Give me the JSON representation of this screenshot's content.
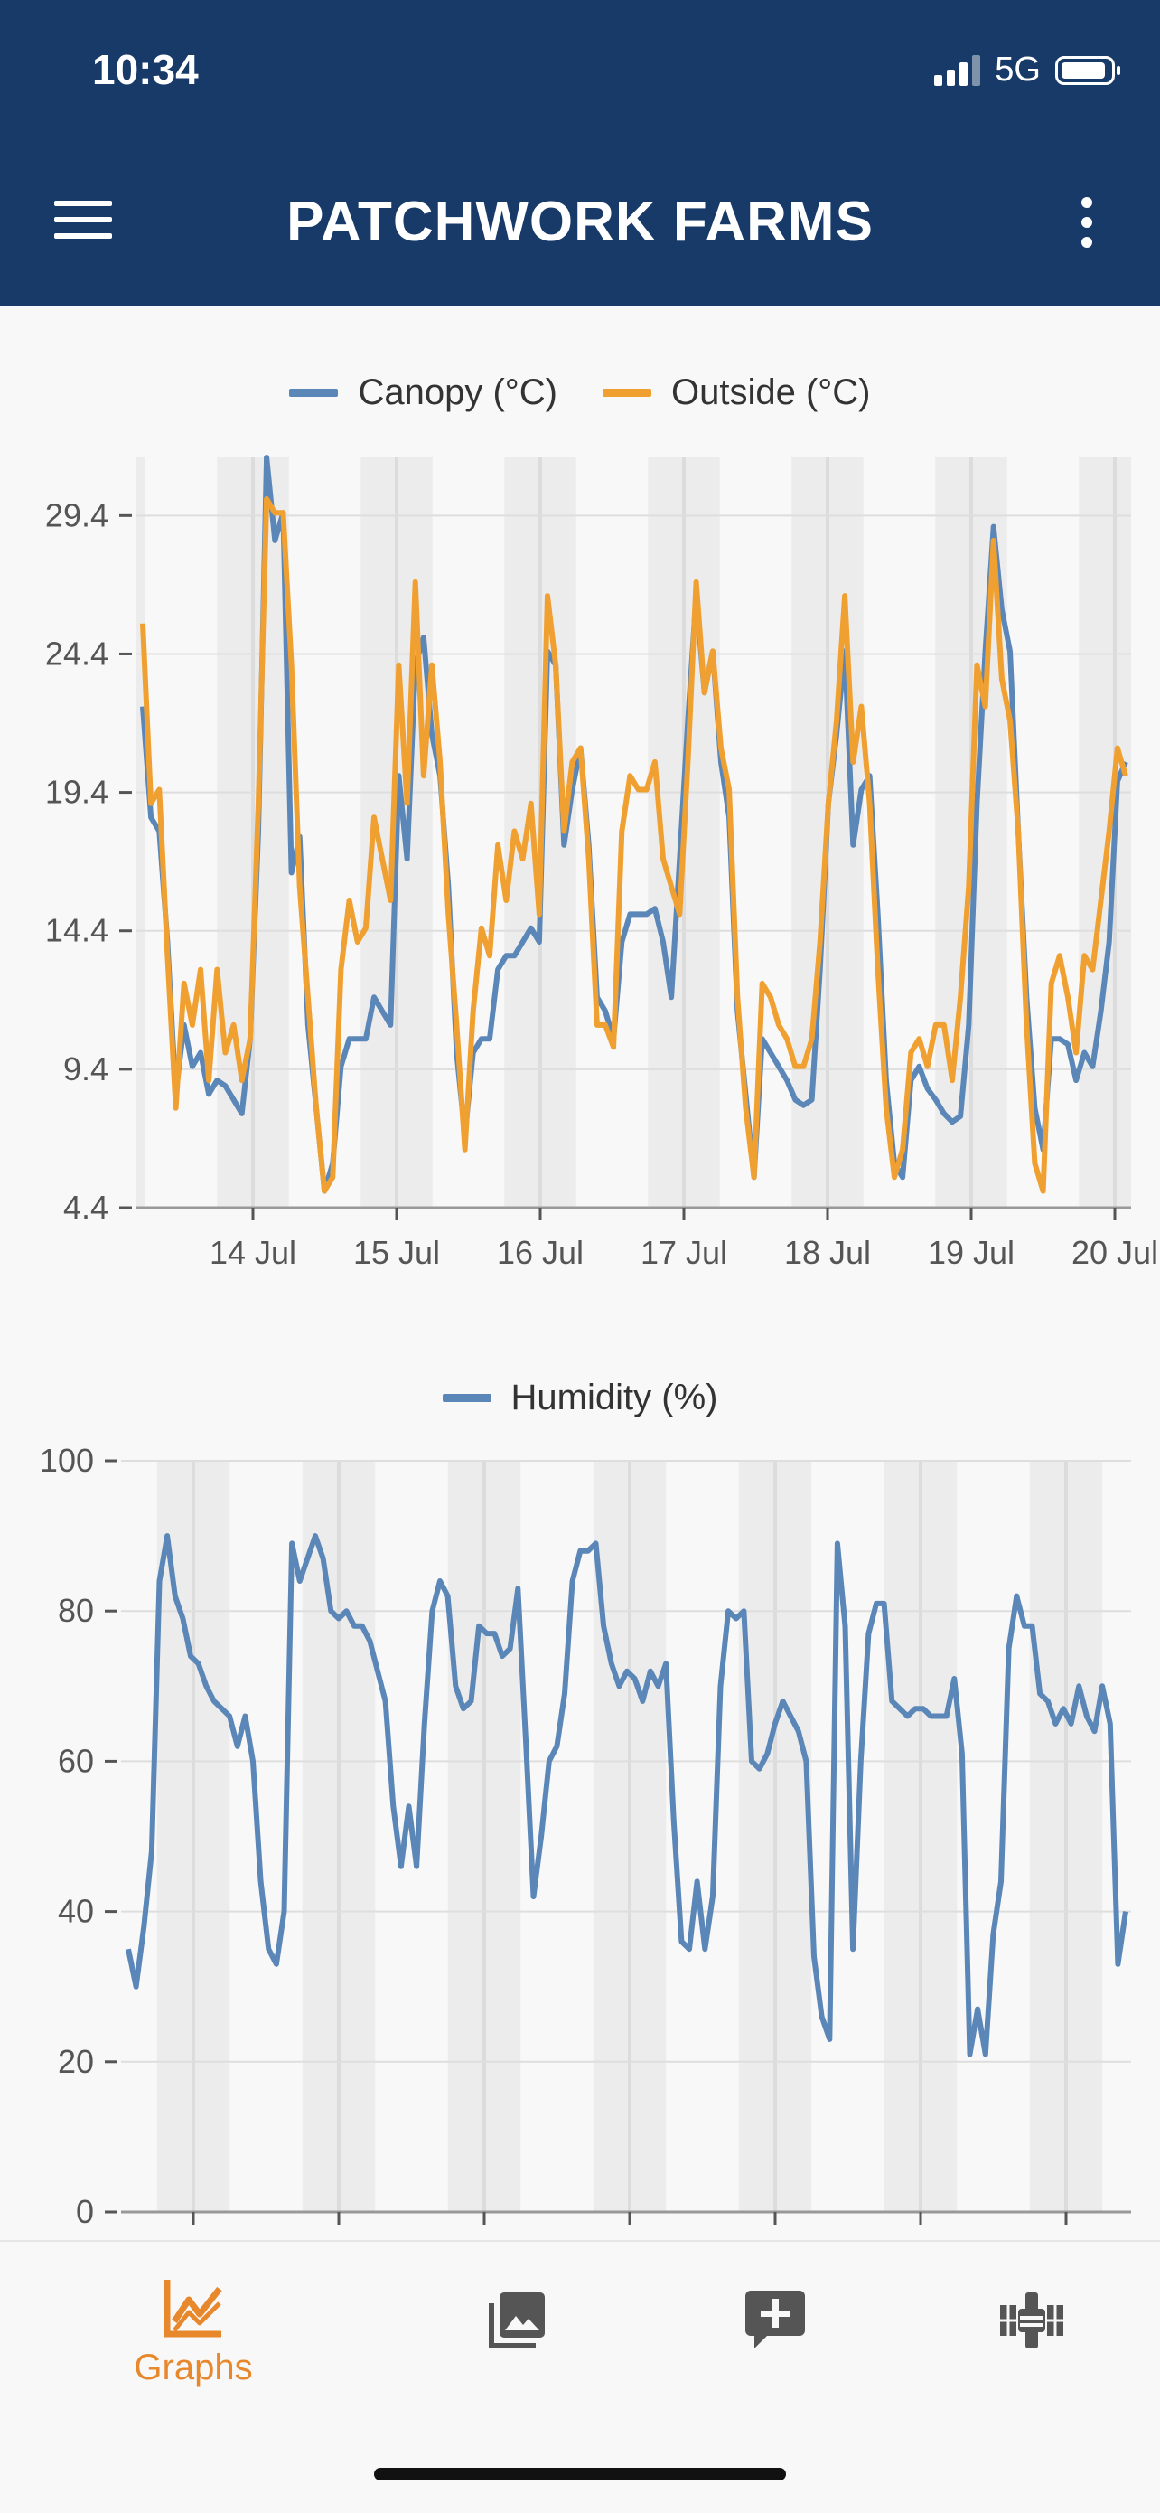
{
  "status_bar": {
    "time": "10:34",
    "network": "5G"
  },
  "app_bar": {
    "title": "PATCHWORK FARMS"
  },
  "colors": {
    "appbar": "#173a69",
    "blue_series": "#5a86b8",
    "orange_series": "#f0a030",
    "accent": "#e8882d",
    "band": "#ececec"
  },
  "chart_data": [
    {
      "type": "line",
      "title": "",
      "series": [
        {
          "name": "Canopy (°C)",
          "color": "#5a86b8",
          "values": [
            22.5,
            18.5,
            18,
            14,
            8.5,
            11,
            9.5,
            10,
            8.5,
            9,
            8.8,
            8.3,
            7.8,
            10.5,
            18,
            31.5,
            28.5,
            29.5,
            16.5,
            17.8,
            11,
            8,
            5,
            6,
            9.5,
            10.5,
            10.5,
            10.5,
            12,
            11.5,
            11,
            20,
            17,
            24,
            25,
            21.5,
            20,
            16,
            10,
            7,
            10,
            10.5,
            10.5,
            13,
            13.5,
            13.5,
            14,
            14.5,
            14,
            24.5,
            24,
            17.5,
            19.5,
            21,
            17.5,
            12,
            11.5,
            10.5,
            14,
            15,
            15,
            15,
            15.2,
            14,
            12,
            17,
            22,
            26.5,
            23,
            24.5,
            20.5,
            18.5,
            11.5,
            8.5,
            5.5,
            10.5,
            10,
            9.5,
            9,
            8.3,
            8.1,
            8.3,
            13,
            19,
            21.5,
            24.5,
            17.5,
            19.5,
            20,
            15,
            9,
            6,
            5.5,
            9,
            9.5,
            8.7,
            8.3,
            7.8,
            7.5,
            7.7,
            11,
            19,
            24.5,
            29,
            26,
            24.5,
            18,
            12,
            8,
            6.5,
            10.5,
            10.5,
            10.3,
            9,
            10,
            9.5,
            11.5,
            14,
            19.8,
            20.5
          ]
        },
        {
          "name": "Outside (°C)",
          "color": "#f0a030",
          "values": [
            25.5,
            19,
            19.5,
            13.5,
            8,
            12.5,
            11,
            13,
            9,
            13,
            10,
            11,
            9,
            10.5,
            19,
            30,
            29.5,
            29.5,
            24,
            16,
            12,
            8,
            5,
            5.5,
            13,
            15.5,
            14,
            14.5,
            18.5,
            17,
            15.5,
            24,
            19,
            27,
            20,
            24,
            20.5,
            15,
            11,
            6.5,
            11.5,
            14.5,
            13.5,
            17.5,
            15.5,
            18,
            17,
            19,
            15,
            26.5,
            24,
            18,
            20.5,
            21,
            17,
            11,
            11,
            10.2,
            18,
            20,
            19.5,
            19.5,
            20.5,
            17,
            16,
            15,
            20.5,
            27,
            23,
            24.5,
            21,
            19.5,
            12,
            8,
            5.5,
            12.5,
            12,
            11,
            10.5,
            9.5,
            9.5,
            10.5,
            14,
            19,
            22,
            26.5,
            20.5,
            22.5,
            19,
            13,
            8,
            5.5,
            6.5,
            10,
            10.5,
            9.5,
            11,
            11,
            9,
            12,
            16,
            24,
            22.5,
            28.5,
            23.5,
            22,
            18,
            11,
            6,
            5,
            12.5,
            13.5,
            12,
            10,
            13.5,
            13,
            15.5,
            18,
            21,
            20
          ]
        }
      ],
      "x_tick_labels": [
        "14 Jul",
        "15 Jul",
        "16 Jul",
        "17 Jul",
        "18 Jul",
        "19 Jul",
        "20 Jul"
      ],
      "y_tick_labels": [
        "4.4",
        "9.4",
        "14.4",
        "19.4",
        "24.4",
        "29.4"
      ],
      "ylim": [
        4.4,
        31.5
      ],
      "grid": true,
      "legend_position": "top-center"
    },
    {
      "type": "line",
      "title": "",
      "series": [
        {
          "name": "Humidity (%)",
          "color": "#5a86b8",
          "values": [
            35,
            30,
            38,
            48,
            84,
            90,
            82,
            79,
            74,
            73,
            70,
            68,
            67,
            66,
            62,
            66,
            60,
            44,
            35,
            33,
            40,
            89,
            84,
            87,
            90,
            87,
            80,
            79,
            80,
            78,
            78,
            76,
            72,
            68,
            54,
            46,
            54,
            46,
            65,
            80,
            84,
            82,
            70,
            67,
            68,
            78,
            77,
            77,
            74,
            75,
            83,
            63,
            42,
            50,
            60,
            62,
            69,
            84,
            88,
            88,
            89,
            78,
            73,
            70,
            72,
            71,
            68,
            72,
            70,
            73,
            52,
            36,
            35,
            44,
            35,
            42,
            70,
            80,
            79,
            80,
            60,
            59,
            61,
            65,
            68,
            66,
            64,
            60,
            34,
            26,
            23,
            89,
            78,
            35,
            60,
            77,
            81,
            81,
            68,
            67,
            66,
            67,
            67,
            66,
            66,
            66,
            71,
            61,
            21,
            27,
            21,
            37,
            44,
            75,
            82,
            78,
            78,
            69,
            68,
            65,
            67,
            65,
            70,
            66,
            64,
            70,
            65,
            33,
            40
          ],
          "x_start_offset_days": -0.25
        }
      ],
      "x_tick_labels": [
        "",
        "",
        "",
        "",
        "",
        "",
        ""
      ],
      "y_tick_labels": [
        "0",
        "20",
        "40",
        "60",
        "80",
        "100"
      ],
      "ylim": [
        0,
        100
      ],
      "grid": true,
      "legend_position": "top-center"
    }
  ],
  "bottom_nav": {
    "items": [
      {
        "label": "Graphs",
        "icon": "graph-icon",
        "active": true
      },
      {
        "label": "",
        "icon": "photo-icon",
        "active": false
      },
      {
        "label": "",
        "icon": "add-comment-icon",
        "active": false
      },
      {
        "label": "",
        "icon": "satellite-icon",
        "active": false
      }
    ]
  }
}
